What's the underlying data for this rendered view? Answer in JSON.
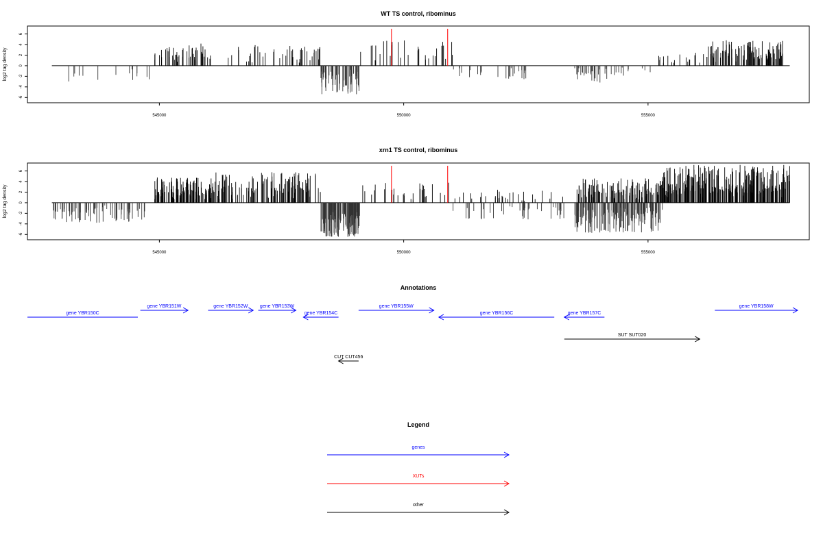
{
  "chart_data": [
    {
      "type": "bar",
      "title": "WT TS control, ribominus",
      "ylabel": "log2 tag density",
      "xlim": [
        542300,
        558300
      ],
      "ylim": [
        -7,
        7.5
      ],
      "xticks": [
        545000,
        550000,
        555000
      ],
      "yticks": [
        -6,
        -4,
        -2,
        0,
        2,
        4,
        6
      ],
      "grid": false,
      "xut_marks": [
        549750,
        550900
      ],
      "regions": [
        {
          "from": 542800,
          "to": 544800,
          "sign": -1,
          "count": 14,
          "max": 3.2
        },
        {
          "from": 544900,
          "to": 546100,
          "sign": 1,
          "count": 50,
          "max": 4.2
        },
        {
          "from": 546400,
          "to": 548300,
          "sign": 1,
          "count": 45,
          "max": 4.0
        },
        {
          "from": 548300,
          "to": 549100,
          "sign": -1,
          "count": 70,
          "max": 5.5
        },
        {
          "from": 549100,
          "to": 551000,
          "sign": 1,
          "count": 30,
          "max": 4.8
        },
        {
          "from": 551000,
          "to": 552600,
          "sign": -1,
          "count": 25,
          "max": 2.8
        },
        {
          "from": 553500,
          "to": 554200,
          "sign": -1,
          "count": 30,
          "max": 3.5
        },
        {
          "from": 554200,
          "to": 555200,
          "sign": -1,
          "count": 12,
          "max": 2.0
        },
        {
          "from": 555200,
          "to": 556200,
          "sign": 1,
          "count": 18,
          "max": 2.5
        },
        {
          "from": 556200,
          "to": 557800,
          "sign": 1,
          "count": 110,
          "max": 4.8
        }
      ]
    },
    {
      "type": "bar",
      "title": "xrn1 TS control, ribominus",
      "ylabel": "log2 tag density",
      "xlim": [
        542300,
        558300
      ],
      "ylim": [
        -7,
        7.5
      ],
      "xticks": [
        545000,
        550000,
        555000
      ],
      "yticks": [
        -6,
        -4,
        -2,
        0,
        2,
        4,
        6
      ],
      "grid": false,
      "xut_marks": [
        549750,
        550900
      ],
      "regions": [
        {
          "from": 542800,
          "to": 544700,
          "sign": -1,
          "count": 80,
          "max": 3.8
        },
        {
          "from": 544900,
          "to": 546100,
          "sign": 1,
          "count": 120,
          "max": 4.8
        },
        {
          "from": 546100,
          "to": 548300,
          "sign": 1,
          "count": 130,
          "max": 5.8
        },
        {
          "from": 548300,
          "to": 549100,
          "sign": -1,
          "count": 130,
          "max": 6.5
        },
        {
          "from": 549100,
          "to": 551000,
          "sign": 1,
          "count": 30,
          "max": 4.0
        },
        {
          "from": 551000,
          "to": 553300,
          "sign": -1,
          "count": 40,
          "max": 3.2
        },
        {
          "from": 551000,
          "to": 553300,
          "sign": 1,
          "count": 30,
          "max": 2.6
        },
        {
          "from": 553500,
          "to": 555300,
          "sign": -1,
          "count": 160,
          "max": 5.8
        },
        {
          "from": 553500,
          "to": 555300,
          "sign": 1,
          "count": 120,
          "max": 4.6
        },
        {
          "from": 555300,
          "to": 557900,
          "sign": 1,
          "count": 280,
          "max": 7.2
        }
      ]
    }
  ],
  "annotations": {
    "title": "Annotations",
    "features": [
      {
        "label": "gene YBR150C",
        "start": 542800,
        "end": 545000,
        "strand": "-",
        "row": 1,
        "color": "#0000ff",
        "arrow": false
      },
      {
        "label": "gene YBR151W",
        "start": 545050,
        "end": 546000,
        "strand": "+",
        "row": 0,
        "color": "#0000ff",
        "arrow": true
      },
      {
        "label": "gene YBR152W",
        "start": 546400,
        "end": 547300,
        "strand": "+",
        "row": 0,
        "color": "#0000ff",
        "arrow": true
      },
      {
        "label": "gene YBR153W",
        "start": 547400,
        "end": 548150,
        "strand": "+",
        "row": 0,
        "color": "#0000ff",
        "arrow": true
      },
      {
        "label": "gene YBR154C",
        "start": 548300,
        "end": 549000,
        "strand": "-",
        "row": 1,
        "color": "#0000ff",
        "arrow": true
      },
      {
        "label": "gene YBR155W",
        "start": 549400,
        "end": 550900,
        "strand": "+",
        "row": 0,
        "color": "#0000ff",
        "arrow": true
      },
      {
        "label": "gene YBR156C",
        "start": 551000,
        "end": 553300,
        "strand": "-",
        "row": 1,
        "color": "#0000ff",
        "arrow": true
      },
      {
        "label": "gene YBR157C",
        "start": 553500,
        "end": 554300,
        "strand": "-",
        "row": 1,
        "color": "#0000ff",
        "arrow": true
      },
      {
        "label": "gene YBR158W",
        "start": 556500,
        "end": 558150,
        "strand": "+",
        "row": 0,
        "color": "#0000ff",
        "arrow": true
      },
      {
        "label": "SUT SUT020",
        "start": 553500,
        "end": 556200,
        "strand": "+",
        "row": 2,
        "color": "#000000",
        "arrow": true
      },
      {
        "label": "CUT CUT456",
        "start": 549000,
        "end": 549400,
        "strand": "-",
        "row": 3,
        "color": "#000000",
        "arrow": true
      }
    ]
  },
  "legend": {
    "title": "Legend",
    "items": [
      {
        "label": "genes",
        "color": "#0000ff"
      },
      {
        "label": "XUTs",
        "color": "#ff0000"
      },
      {
        "label": "other",
        "color": "#000000"
      }
    ]
  }
}
